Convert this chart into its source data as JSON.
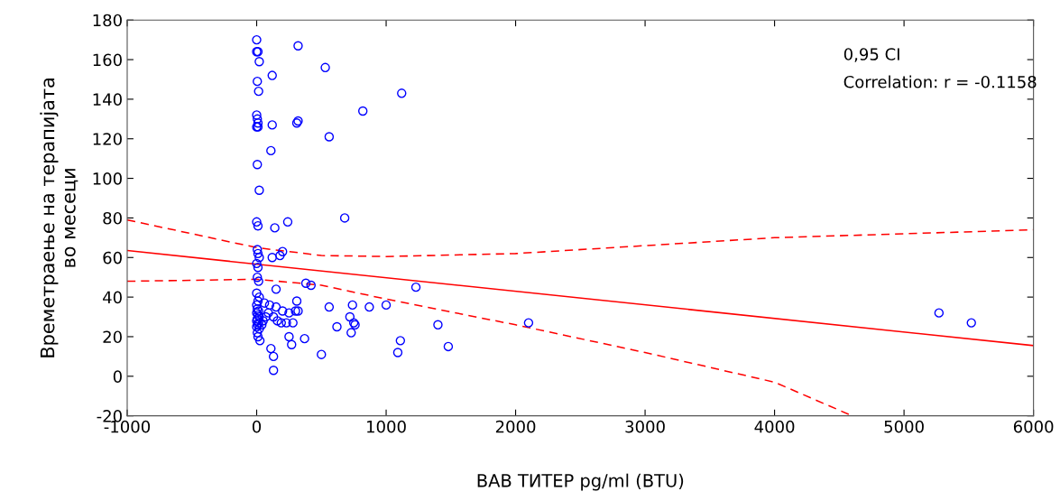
{
  "chart_data": {
    "type": "scatter",
    "xlabel": "ВАВ ТИТЕР pg/ml (BTU)",
    "ylabel": "Времетраење на терапијата\nво месеци",
    "xlim": [
      -1000,
      6000
    ],
    "xticks": [
      -1000,
      0,
      1000,
      2000,
      3000,
      4000,
      5000,
      6000
    ],
    "ylim": [
      -20,
      180
    ],
    "yticks": [
      -20,
      0,
      20,
      40,
      60,
      80,
      100,
      120,
      140,
      160,
      180
    ],
    "grid": false,
    "legend": false,
    "annotations": [
      "0,95 CI",
      "Correlation: r = -0.1158"
    ],
    "series": [
      {
        "type": "scatter",
        "color": "#0000ff",
        "marker": "circle",
        "x": [
          0,
          0,
          10,
          20,
          5,
          15,
          0,
          5,
          10,
          0,
          10,
          5,
          20,
          0,
          10,
          5,
          10,
          20,
          0,
          10,
          5,
          15,
          0,
          20,
          10,
          0,
          5,
          15,
          0,
          10,
          20,
          5,
          0,
          15,
          10,
          0,
          20,
          5,
          10,
          25,
          320,
          530,
          120,
          1120,
          820,
          310,
          320,
          120,
          560,
          110,
          680,
          240,
          140,
          180,
          200,
          120,
          380,
          420,
          1230,
          150,
          310,
          60,
          1000,
          870,
          560,
          740,
          100,
          150,
          200,
          300,
          320,
          250,
          90,
          130,
          160,
          720,
          750,
          1400,
          620,
          190,
          230,
          280,
          760,
          2100,
          5270,
          5520,
          250,
          370,
          730,
          1110,
          1090,
          1480,
          270,
          110,
          130,
          500,
          130,
          50,
          70,
          40
        ],
        "values": [
          170,
          164,
          164,
          159,
          149,
          144,
          132,
          130,
          128,
          126,
          126,
          107,
          94,
          78,
          76,
          64,
          62,
          60,
          57,
          55,
          50,
          48,
          42,
          40,
          38,
          36,
          34,
          33,
          32,
          31,
          30,
          29,
          28,
          27,
          26,
          25,
          24,
          22,
          20,
          18,
          167,
          156,
          152,
          143,
          134,
          128,
          129,
          127,
          121,
          114,
          80,
          78,
          75,
          61,
          63,
          60,
          47,
          46,
          45,
          44,
          38,
          37,
          36,
          35,
          35,
          36,
          36,
          35,
          33,
          33,
          33,
          32,
          32,
          30,
          28,
          30,
          27,
          26,
          25,
          27,
          27,
          27,
          26,
          27,
          32,
          27,
          20,
          19,
          22,
          18,
          12,
          15,
          16,
          14,
          10,
          11,
          3,
          28,
          30,
          26
        ]
      },
      {
        "type": "line",
        "color": "#ff0000",
        "line_style": "solid",
        "marker": "none",
        "x": [
          -1000,
          6000
        ],
        "values": [
          63.5,
          15.5
        ]
      },
      {
        "type": "line",
        "color": "#ff0000",
        "line_style": "dashed",
        "marker": "none",
        "x": [
          -1000,
          0,
          500,
          1000,
          2000,
          3000,
          4000,
          5000,
          6000
        ],
        "values": [
          79,
          65,
          61,
          60.5,
          62,
          66,
          70,
          72,
          74
        ]
      },
      {
        "type": "line",
        "color": "#ff0000",
        "line_style": "dashed",
        "marker": "none",
        "x": [
          -1000,
          0,
          500,
          1000,
          2000,
          3000,
          4000,
          4600
        ],
        "values": [
          48,
          49,
          46,
          39,
          26,
          12,
          -3,
          -20
        ]
      }
    ]
  }
}
